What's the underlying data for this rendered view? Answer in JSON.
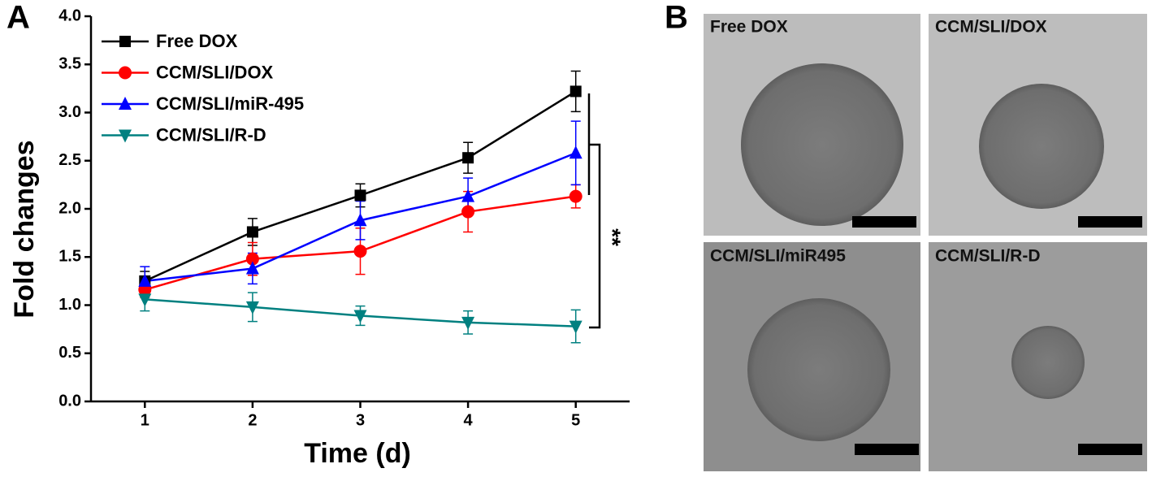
{
  "chart_data": {
    "type": "line",
    "panel_label": "A",
    "xlabel": "Time (d)",
    "ylabel": "Fold changes",
    "x": [
      1,
      2,
      3,
      4,
      5
    ],
    "xlim": [
      0.5,
      5.5
    ],
    "xticks": [
      1,
      2,
      3,
      4,
      5
    ],
    "ylim": [
      0,
      4
    ],
    "yticks": [
      {
        "value": 0,
        "label": "0.0"
      },
      0.5,
      {
        "value": 1,
        "label": "1.0"
      },
      1.5,
      {
        "value": 2,
        "label": "2.0"
      },
      2.5,
      {
        "value": 3,
        "label": "3.0"
      },
      3.5,
      {
        "value": 4,
        "label": "4.0"
      }
    ],
    "legend": "upper left",
    "annotation": "**",
    "series": [
      {
        "name": "Free DOX",
        "color": "#000000",
        "marker": "square",
        "values": [
          1.25,
          1.76,
          2.14,
          2.53,
          3.22
        ],
        "errors": [
          0.1,
          0.14,
          0.12,
          0.16,
          0.21
        ]
      },
      {
        "name": "CCM/SLI/DOX",
        "color": "#ff0000",
        "marker": "circle",
        "values": [
          1.16,
          1.48,
          1.56,
          1.97,
          2.13
        ],
        "errors": [
          0.08,
          0.17,
          0.24,
          0.21,
          0.12
        ]
      },
      {
        "name": "CCM/SLI/miR-495",
        "color": "#0000ff",
        "marker": "triangle-up",
        "values": [
          1.25,
          1.38,
          1.88,
          2.13,
          2.58
        ],
        "errors": [
          0.15,
          0.16,
          0.2,
          0.19,
          0.33
        ]
      },
      {
        "name": "CCM/SLI/R-D",
        "color": "#008080",
        "marker": "triangle-down",
        "values": [
          1.06,
          0.98,
          0.89,
          0.82,
          0.78
        ],
        "errors": [
          0.12,
          0.15,
          0.1,
          0.12,
          0.17
        ]
      }
    ]
  },
  "panel_b": {
    "panel_label": "B",
    "images": [
      {
        "label": "Free DOX"
      },
      {
        "label": "CCM/SLI/DOX"
      },
      {
        "label": "CCM/SLI/miR495"
      },
      {
        "label": "CCM/SLI/R-D"
      }
    ]
  }
}
